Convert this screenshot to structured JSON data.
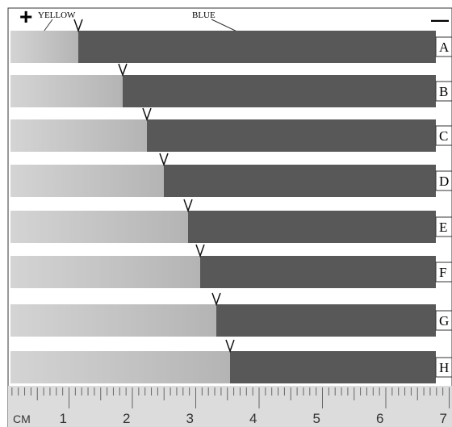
{
  "header": {
    "plus": "+",
    "yellow": "YELLOW",
    "blue": "BLUE",
    "minus": "—"
  },
  "lanes": [
    "A",
    "B",
    "C",
    "D",
    "E",
    "F",
    "G",
    "H"
  ],
  "ruler": {
    "unit": "CM",
    "marks": [
      1,
      2,
      3,
      4,
      5,
      6,
      7
    ]
  }
}
